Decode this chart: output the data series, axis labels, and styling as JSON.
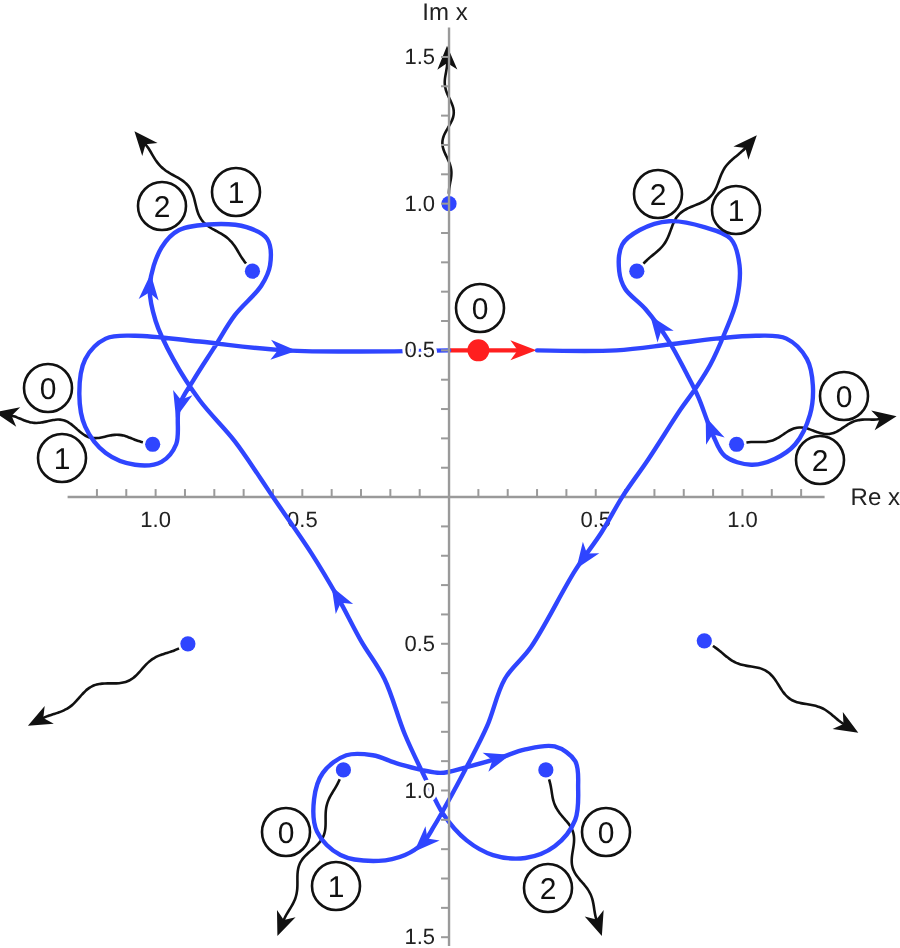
{
  "chart_data": {
    "type": "line",
    "xlabel": "Re x",
    "ylabel": "Im x",
    "xlim": [
      -1.3,
      1.28
    ],
    "ylim": [
      -1.53,
      1.6
    ],
    "xticks": [
      {
        "value": -1.2,
        "label": null
      },
      {
        "value": -1.1,
        "label": null
      },
      {
        "value": -1,
        "label": "1.0"
      },
      {
        "value": -0.9,
        "label": null
      },
      {
        "value": -0.8,
        "label": null
      },
      {
        "value": -0.7,
        "label": null
      },
      {
        "value": -0.6,
        "label": null
      },
      {
        "value": -0.5,
        "label": "0.5"
      },
      {
        "value": -0.4,
        "label": null
      },
      {
        "value": -0.3,
        "label": null
      },
      {
        "value": -0.2,
        "label": null
      },
      {
        "value": -0.1,
        "label": null
      },
      {
        "value": 0.1,
        "label": null
      },
      {
        "value": 0.2,
        "label": null
      },
      {
        "value": 0.3,
        "label": null
      },
      {
        "value": 0.4,
        "label": null
      },
      0.5,
      {
        "value": 0.6,
        "label": null
      },
      {
        "value": 0.7,
        "label": null
      },
      {
        "value": 0.8,
        "label": null
      },
      {
        "value": 0.9,
        "label": null
      },
      {
        "value": 1,
        "label": "1.0"
      },
      {
        "value": 1.1,
        "label": null
      },
      {
        "value": 1.2,
        "label": null
      }
    ],
    "yticks": [
      {
        "value": -1.5,
        "label": "1.5"
      },
      {
        "value": -1.4,
        "label": null
      },
      {
        "value": -1.3,
        "label": null
      },
      {
        "value": -1.2,
        "label": null
      },
      {
        "value": -1.1,
        "label": null
      },
      {
        "value": -1,
        "label": "1.0"
      },
      {
        "value": -0.9,
        "label": null
      },
      {
        "value": -0.8,
        "label": null
      },
      {
        "value": -0.7,
        "label": null
      },
      {
        "value": -0.6,
        "label": null
      },
      {
        "value": -0.5,
        "label": "0.5"
      },
      {
        "value": -0.4,
        "label": null
      },
      {
        "value": -0.3,
        "label": null
      },
      {
        "value": -0.2,
        "label": null
      },
      {
        "value": -0.1,
        "label": null
      },
      {
        "value": 0.1,
        "label": null
      },
      {
        "value": 0.2,
        "label": null
      },
      {
        "value": 0.3,
        "label": null
      },
      {
        "value": 0.4,
        "label": null
      },
      0.5,
      {
        "value": 0.6,
        "label": null
      },
      {
        "value": 0.7,
        "label": null
      },
      {
        "value": 0.8,
        "label": null
      },
      {
        "value": 0.9,
        "label": null
      },
      {
        "value": 1,
        "label": "1.0"
      },
      {
        "value": 1.1,
        "label": null
      },
      {
        "value": 1.2,
        "label": null
      },
      {
        "value": 1.3,
        "label": null
      },
      {
        "value": 1.4,
        "label": null
      },
      1.5
    ],
    "series": [
      {
        "color": "#2f45ff",
        "x": [
          0.3,
          0.57,
          0.75,
          0.91,
          1.05,
          1.15,
          1.22,
          1.24,
          1.23,
          1.18,
          1.11,
          1.03,
          0.94,
          0.9,
          0.88,
          0.85,
          0.81,
          0.75,
          0.67,
          0.6,
          0.58,
          0.59,
          0.65,
          0.75,
          0.87,
          0.96,
          0.99,
          0.98,
          0.94,
          0.89,
          0.84,
          0.79,
          0.68,
          0.59,
          0.52,
          0.43,
          0.28,
          0.19,
          0.13,
          0.06,
          -0.01,
          -0.05,
          -0.09,
          -0.15,
          -0.24,
          -0.37,
          -0.45,
          -0.46,
          -0.43,
          -0.35,
          -0.26,
          -0.17,
          -0.03,
          0.06,
          0.17,
          0.26,
          0.36,
          0.43,
          0.44,
          0.43,
          0.36,
          0.26,
          0.15,
          0.06,
          -0.02,
          -0.08,
          -0.15,
          -0.22,
          -0.3,
          -0.38,
          -0.47,
          -0.6,
          -0.64,
          -0.73,
          -0.85,
          -0.94,
          -1,
          -1.02,
          -0.98,
          -0.92,
          -0.8,
          -0.69,
          -0.62,
          -0.61,
          -0.64,
          -0.73,
          -0.8,
          -0.87,
          -0.92,
          -0.93,
          -0.98,
          -1.07,
          -1.17,
          -1.24,
          -1.26,
          -1.24,
          -1.17,
          -1.07,
          -0.85,
          -0.56,
          0
        ],
        "values": [
          0.5,
          0.5,
          0.52,
          0.54,
          0.55,
          0.54,
          0.47,
          0.38,
          0.28,
          0.18,
          0.13,
          0.11,
          0.14,
          0.21,
          0.26,
          0.34,
          0.42,
          0.53,
          0.64,
          0.71,
          0.77,
          0.86,
          0.91,
          0.94,
          0.92,
          0.88,
          0.79,
          0.67,
          0.56,
          0.45,
          0.37,
          0.3,
          0.13,
          0,
          -0.12,
          -0.25,
          -0.51,
          -0.62,
          -0.78,
          -0.92,
          -1.05,
          -1.12,
          -1.18,
          -1.22,
          -1.24,
          -1.22,
          -1.14,
          -1.03,
          -0.94,
          -0.88,
          -0.88,
          -0.91,
          -0.94,
          -0.92,
          -0.89,
          -0.86,
          -0.85,
          -0.9,
          -0.99,
          -1.1,
          -1.19,
          -1.23,
          -1.22,
          -1.17,
          -1.08,
          -0.96,
          -0.81,
          -0.62,
          -0.49,
          -0.34,
          -0.19,
          0,
          0.06,
          0.19,
          0.33,
          0.47,
          0.6,
          0.72,
          0.85,
          0.91,
          0.93,
          0.92,
          0.88,
          0.79,
          0.72,
          0.62,
          0.51,
          0.4,
          0.31,
          0.18,
          0.12,
          0.11,
          0.15,
          0.24,
          0.35,
          0.47,
          0.54,
          0.55,
          0.53,
          0.5,
          0.5
        ]
      },
      {
        "type": "scatter",
        "color": "#2f45ff",
        "marker": "circle",
        "x": [
          0.98,
          0.64,
          0,
          -0.67,
          -1.01,
          -0.89,
          -0.36,
          0.33,
          0.87
        ],
        "values": [
          0.18,
          0.77,
          1,
          0.77,
          0.18,
          -0.5,
          -0.93,
          -0.93,
          -0.49
        ]
      },
      {
        "type": "scatter",
        "color": "#ff1f1f",
        "marker": "circle",
        "x": [
          0.1
        ],
        "values": [
          0.5
        ]
      }
    ],
    "annotations": [
      "1",
      "2",
      "0",
      "1",
      "0",
      "2",
      "1",
      "0",
      "2",
      "0",
      "1",
      "0",
      "2"
    ]
  }
}
